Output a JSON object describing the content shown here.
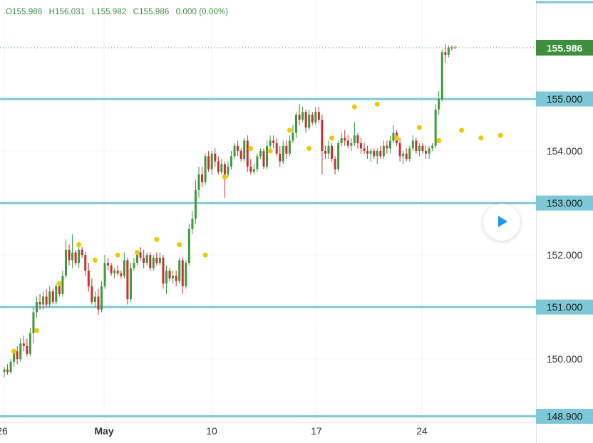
{
  "ohlc": {
    "open": "O155.986",
    "high": "H156.031",
    "low": "L155.982",
    "close": "C155.986",
    "change": "0.000 (0.00%)"
  },
  "colors": {
    "up": "#3d9a3d",
    "down": "#c93030",
    "level": "#7cc8d6",
    "marker": "#f0c800",
    "last_price_bg": "#3d8f3d",
    "axis_text": "#333333",
    "play": "#2196f3"
  },
  "icons": {
    "play": "play-icon"
  },
  "chart_data": {
    "type": "candlestick",
    "title": "",
    "xlabel": "",
    "ylabel": "",
    "ylim": [
      148.9,
      156.6
    ],
    "y_ticks": [
      "148.900",
      "150.000",
      "151.000",
      "152.000",
      "153.000",
      "154.000",
      "155.000"
    ],
    "x_ticks": [
      "26",
      "May",
      "10",
      "17",
      "24"
    ],
    "last_price": "155.986",
    "levels": [
      155.0,
      153.0,
      151.0,
      148.9
    ],
    "level_labels": [
      "155.000",
      "153.000",
      "151.000",
      "148.900"
    ],
    "grid": true,
    "candles": [
      [
        149.75,
        149.85,
        149.65,
        149.8
      ],
      [
        149.8,
        149.9,
        149.7,
        149.75
      ],
      [
        149.75,
        150.0,
        149.72,
        149.95
      ],
      [
        149.95,
        150.2,
        149.85,
        150.15
      ],
      [
        150.15,
        150.25,
        149.9,
        150.0
      ],
      [
        150.0,
        150.4,
        149.95,
        150.3
      ],
      [
        150.3,
        150.45,
        150.15,
        150.25
      ],
      [
        150.25,
        150.4,
        150.05,
        150.1
      ],
      [
        150.1,
        150.6,
        150.05,
        150.5
      ],
      [
        150.5,
        151.0,
        150.3,
        150.9
      ],
      [
        150.9,
        151.2,
        150.8,
        151.1
      ],
      [
        151.1,
        151.25,
        150.95,
        151.05
      ],
      [
        151.05,
        151.3,
        150.95,
        151.2
      ],
      [
        151.2,
        151.35,
        151.0,
        151.05
      ],
      [
        151.05,
        151.4,
        151.0,
        151.3
      ],
      [
        151.3,
        151.35,
        151.05,
        151.1
      ],
      [
        151.1,
        151.45,
        151.05,
        151.4
      ],
      [
        151.4,
        151.45,
        151.2,
        151.25
      ],
      [
        151.25,
        151.7,
        151.2,
        151.6
      ],
      [
        151.6,
        152.3,
        151.55,
        152.1
      ],
      [
        152.1,
        152.2,
        151.8,
        151.9
      ],
      [
        151.9,
        152.4,
        151.75,
        152.05
      ],
      [
        152.05,
        152.1,
        151.8,
        151.85
      ],
      [
        151.85,
        152.2,
        151.75,
        152.1
      ],
      [
        152.1,
        152.15,
        151.95,
        152.0
      ],
      [
        152.0,
        152.05,
        151.6,
        151.7
      ],
      [
        151.7,
        151.85,
        151.3,
        151.4
      ],
      [
        151.4,
        151.55,
        151.05,
        151.1
      ],
      [
        151.1,
        151.3,
        151.0,
        151.2
      ],
      [
        151.2,
        151.35,
        150.85,
        150.95
      ],
      [
        150.95,
        151.5,
        150.9,
        151.4
      ],
      [
        151.4,
        152.0,
        151.35,
        151.85
      ],
      [
        151.85,
        151.95,
        151.7,
        151.8
      ],
      [
        151.8,
        151.85,
        151.6,
        151.65
      ],
      [
        151.65,
        151.75,
        151.55,
        151.7
      ],
      [
        151.7,
        151.8,
        151.6,
        151.65
      ],
      [
        151.65,
        151.7,
        151.55,
        151.6
      ],
      [
        151.6,
        152.05,
        151.55,
        151.9
      ],
      [
        151.9,
        151.95,
        151.05,
        151.15
      ],
      [
        151.15,
        151.85,
        151.1,
        151.75
      ],
      [
        151.75,
        151.95,
        151.7,
        151.85
      ],
      [
        151.85,
        152.1,
        151.8,
        152.05
      ],
      [
        152.05,
        152.15,
        151.9,
        151.95
      ],
      [
        151.95,
        152.1,
        151.75,
        151.85
      ],
      [
        151.85,
        152.05,
        151.8,
        152.0
      ],
      [
        152.0,
        152.05,
        151.7,
        151.75
      ],
      [
        151.75,
        152.0,
        151.7,
        151.95
      ],
      [
        151.95,
        152.05,
        151.8,
        151.85
      ],
      [
        151.85,
        152.05,
        151.8,
        151.95
      ],
      [
        151.95,
        152.0,
        151.35,
        151.45
      ],
      [
        151.45,
        151.8,
        151.25,
        151.7
      ],
      [
        151.7,
        151.75,
        151.5,
        151.55
      ],
      [
        151.55,
        151.7,
        151.45,
        151.6
      ],
      [
        151.6,
        151.7,
        151.4,
        151.5
      ],
      [
        151.5,
        151.95,
        151.45,
        151.9
      ],
      [
        151.9,
        151.95,
        151.25,
        151.4
      ],
      [
        151.4,
        151.9,
        151.35,
        151.85
      ],
      [
        151.85,
        152.6,
        151.8,
        152.5
      ],
      [
        152.5,
        152.85,
        152.4,
        152.7
      ],
      [
        152.7,
        153.45,
        152.6,
        153.25
      ],
      [
        153.25,
        153.7,
        153.1,
        153.55
      ],
      [
        153.55,
        153.7,
        153.3,
        153.4
      ],
      [
        153.4,
        153.95,
        153.35,
        153.9
      ],
      [
        153.9,
        154.0,
        153.6,
        153.65
      ],
      [
        153.65,
        154.0,
        153.55,
        153.95
      ],
      [
        153.95,
        154.05,
        153.7,
        153.8
      ],
      [
        153.8,
        153.9,
        153.55,
        153.6
      ],
      [
        153.6,
        153.85,
        153.55,
        153.75
      ],
      [
        153.75,
        153.8,
        153.1,
        153.55
      ],
      [
        153.55,
        153.8,
        153.5,
        153.7
      ],
      [
        153.7,
        154.0,
        153.65,
        153.9
      ],
      [
        153.9,
        154.15,
        153.85,
        154.1
      ],
      [
        154.1,
        154.2,
        153.9,
        154.0
      ],
      [
        154.0,
        154.05,
        153.8,
        153.85
      ],
      [
        153.85,
        154.25,
        153.8,
        154.2
      ],
      [
        154.2,
        154.3,
        153.6,
        153.7
      ],
      [
        153.7,
        153.85,
        153.55,
        153.6
      ],
      [
        153.6,
        153.75,
        153.55,
        153.65
      ],
      [
        153.65,
        153.95,
        153.6,
        153.9
      ],
      [
        153.9,
        154.05,
        153.85,
        154.0
      ],
      [
        154.0,
        154.05,
        153.65,
        153.7
      ],
      [
        153.7,
        154.2,
        153.65,
        154.1
      ],
      [
        154.1,
        154.3,
        154.0,
        154.2
      ],
      [
        154.2,
        154.3,
        154.05,
        154.15
      ],
      [
        154.15,
        154.25,
        153.9,
        153.95
      ],
      [
        153.95,
        154.1,
        153.7,
        153.8
      ],
      [
        153.8,
        154.2,
        153.75,
        154.1
      ],
      [
        154.1,
        154.2,
        153.85,
        153.95
      ],
      [
        153.95,
        154.3,
        153.9,
        154.2
      ],
      [
        154.2,
        154.5,
        154.15,
        154.35
      ],
      [
        154.35,
        154.75,
        154.25,
        154.7
      ],
      [
        154.7,
        154.9,
        154.5,
        154.6
      ],
      [
        154.6,
        154.85,
        154.55,
        154.75
      ],
      [
        154.75,
        154.8,
        154.35,
        154.45
      ],
      [
        154.45,
        154.8,
        154.4,
        154.7
      ],
      [
        154.7,
        154.75,
        154.5,
        154.55
      ],
      [
        154.55,
        154.85,
        154.5,
        154.75
      ],
      [
        154.75,
        154.85,
        154.55,
        154.6
      ],
      [
        154.6,
        154.7,
        153.55,
        154.0
      ],
      [
        154.0,
        154.1,
        153.85,
        153.95
      ],
      [
        153.95,
        154.2,
        153.85,
        154.1
      ],
      [
        154.1,
        154.15,
        153.8,
        153.85
      ],
      [
        153.85,
        153.9,
        153.55,
        153.65
      ],
      [
        153.65,
        154.2,
        153.6,
        154.15
      ],
      [
        154.15,
        154.35,
        154.1,
        154.25
      ],
      [
        154.25,
        154.4,
        154.1,
        154.2
      ],
      [
        154.2,
        154.3,
        154.05,
        154.1
      ],
      [
        154.1,
        154.25,
        154.0,
        154.15
      ],
      [
        154.15,
        154.55,
        154.1,
        154.3
      ],
      [
        154.3,
        154.35,
        154.05,
        154.15
      ],
      [
        154.15,
        154.25,
        153.95,
        154.05
      ],
      [
        154.05,
        154.15,
        153.95,
        154.0
      ],
      [
        154.0,
        154.1,
        153.85,
        153.95
      ],
      [
        153.95,
        154.05,
        153.8,
        154.0
      ],
      [
        154.0,
        154.05,
        153.85,
        153.9
      ],
      [
        153.9,
        154.05,
        153.75,
        154.0
      ],
      [
        154.0,
        154.1,
        153.85,
        153.9
      ],
      [
        153.9,
        154.2,
        153.85,
        154.1
      ],
      [
        154.1,
        154.2,
        153.95,
        154.05
      ],
      [
        154.05,
        154.3,
        153.95,
        154.2
      ],
      [
        154.2,
        154.5,
        154.15,
        154.35
      ],
      [
        154.35,
        154.4,
        154.1,
        154.15
      ],
      [
        154.15,
        154.25,
        153.8,
        153.9
      ],
      [
        153.9,
        154.0,
        153.75,
        153.95
      ],
      [
        153.95,
        154.05,
        153.8,
        153.85
      ],
      [
        153.85,
        154.1,
        153.8,
        154.05
      ],
      [
        154.05,
        154.3,
        154.0,
        154.2
      ],
      [
        154.2,
        154.25,
        153.95,
        154.0
      ],
      [
        154.0,
        154.15,
        153.9,
        154.1
      ],
      [
        154.1,
        154.15,
        153.95,
        154.0
      ],
      [
        154.0,
        154.1,
        153.85,
        153.95
      ],
      [
        153.95,
        154.1,
        153.85,
        154.05
      ],
      [
        154.05,
        154.15,
        154.0,
        154.1
      ],
      [
        154.1,
        154.9,
        154.05,
        154.8
      ],
      [
        154.8,
        155.15,
        154.7,
        155.0
      ],
      [
        155.0,
        155.95,
        154.95,
        155.9
      ],
      [
        155.9,
        156.05,
        155.7,
        155.85
      ],
      [
        155.85,
        156.03,
        155.8,
        155.99
      ],
      [
        155.99,
        156.03,
        155.93,
        155.98
      ],
      [
        155.98,
        156.03,
        155.96,
        155.99
      ]
    ],
    "markers": [
      [
        3,
        150.15
      ],
      [
        10,
        150.55
      ],
      [
        17,
        151.45
      ],
      [
        23,
        152.2
      ],
      [
        28,
        151.9
      ],
      [
        35,
        152.0
      ],
      [
        41,
        152.05
      ],
      [
        47,
        152.3
      ],
      [
        54,
        152.2
      ],
      [
        62,
        152.0
      ],
      [
        68,
        153.5
      ],
      [
        76,
        154.05
      ],
      [
        82,
        154.0
      ],
      [
        88,
        154.4
      ],
      [
        94,
        154.05
      ],
      [
        101,
        154.25
      ],
      [
        108,
        154.85
      ],
      [
        115,
        154.9
      ],
      [
        121,
        154.25
      ],
      [
        128,
        154.45
      ],
      [
        134,
        154.2
      ],
      [
        141,
        154.4
      ],
      [
        147,
        154.25
      ],
      [
        153,
        154.3
      ]
    ]
  }
}
